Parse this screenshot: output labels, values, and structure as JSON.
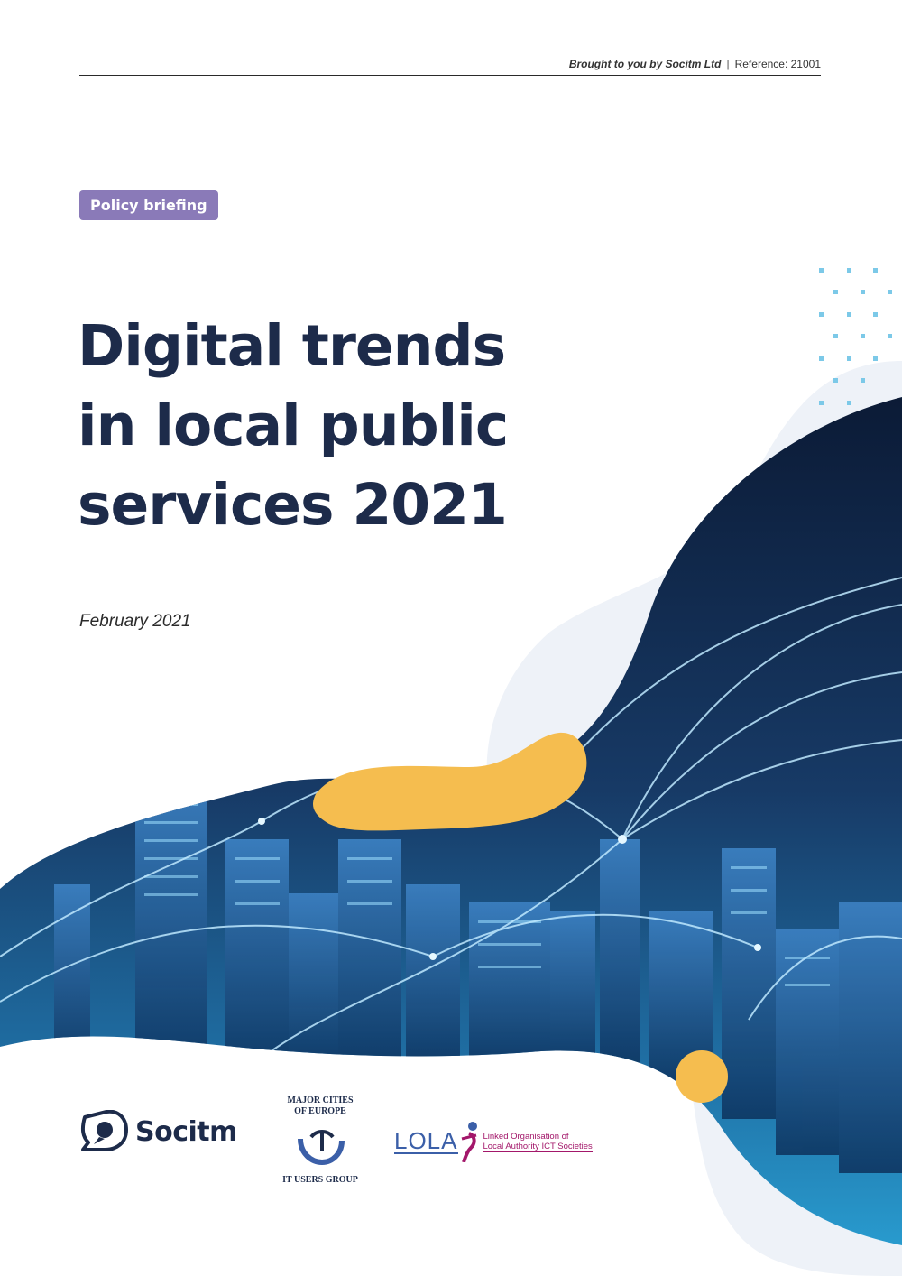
{
  "header": {
    "brought": "Brought to you by Socitm Ltd",
    "separator": "|",
    "reference": "Reference: 21001"
  },
  "badge": {
    "label": "Policy briefing"
  },
  "title": {
    "lines": [
      "Digital trends",
      "in local public",
      "services 2021"
    ]
  },
  "date": "February 2021",
  "logos": {
    "socitm": "Socitm",
    "mcoe_top": [
      "MAJOR CITIES",
      "OF EUROPE"
    ],
    "mcoe_bottom": "IT USERS GROUP",
    "lola": "LOLA",
    "lola_sub": [
      "Linked Organisation of",
      "Local Authority ICT Societies"
    ]
  },
  "colors": {
    "navy": "#1d2b4a",
    "badge": "#8a7ab8",
    "accent_yellow": "#f5bd4f",
    "accent_dots": "#7cc9e8",
    "pale_blob": "#eef2f8"
  }
}
